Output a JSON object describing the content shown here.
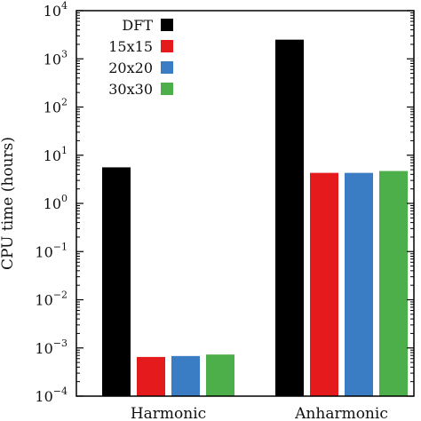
{
  "chart_data": {
    "type": "bar",
    "categories": [
      "Harmonic",
      "Anharmonic"
    ],
    "series": [
      {
        "name": "DFT",
        "color": "#000000",
        "values": [
          5.6,
          2500
        ]
      },
      {
        "name": "15x15",
        "color": "#e41a1c",
        "values": [
          0.00065,
          4.3
        ]
      },
      {
        "name": "20x20",
        "color": "#3b7dc4",
        "values": [
          0.00068,
          4.3
        ]
      },
      {
        "name": "30x30",
        "color": "#4daf4a",
        "values": [
          0.00073,
          4.7
        ]
      }
    ],
    "ylabel": "CPU time (hours)",
    "yscale": "log",
    "ylim": [
      0.0001,
      10000
    ],
    "yticks": [
      {
        "base": "10",
        "exp": "−4",
        "value": 0.0001
      },
      {
        "base": "10",
        "exp": "−3",
        "value": 0.001
      },
      {
        "base": "10",
        "exp": "−2",
        "value": 0.01
      },
      {
        "base": "10",
        "exp": "−1",
        "value": 0.1
      },
      {
        "base": "10",
        "exp": "0",
        "value": 1
      },
      {
        "base": "10",
        "exp": "1",
        "value": 10
      },
      {
        "base": "10",
        "exp": "2",
        "value": 100
      },
      {
        "base": "10",
        "exp": "3",
        "value": 1000
      },
      {
        "base": "10",
        "exp": "4",
        "value": 10000
      }
    ],
    "grid": false,
    "legend": "top-left"
  }
}
